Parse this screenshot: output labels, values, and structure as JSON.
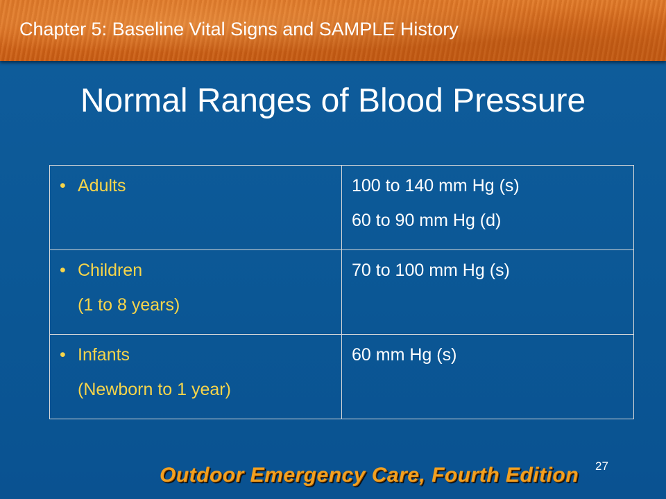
{
  "header": {
    "chapter_title": "Chapter 5: Baseline Vital Signs and SAMPLE History"
  },
  "slide": {
    "title": "Normal Ranges of Blood Pressure",
    "page_number": "27"
  },
  "table": {
    "rows": [
      {
        "label_lines": [
          "Adults"
        ],
        "value_lines": [
          "100 to 140 mm Hg (s)",
          "60 to 90 mm Hg (d)"
        ]
      },
      {
        "label_lines": [
          "Children",
          "(1 to 8 years)"
        ],
        "value_lines": [
          "70 to 100 mm Hg (s)"
        ]
      },
      {
        "label_lines": [
          "Infants",
          "(Newborn to 1 year)"
        ],
        "value_lines": [
          "60 mm Hg (s)"
        ]
      }
    ]
  },
  "footer": {
    "brand": "Outdoor Emergency Care, Fourth Edition"
  },
  "colors": {
    "background": "#0b5795",
    "header_band": "#d7691c",
    "label_text": "#f7d54a",
    "value_text": "#ffffff",
    "footer_brand": "#f2a020"
  }
}
